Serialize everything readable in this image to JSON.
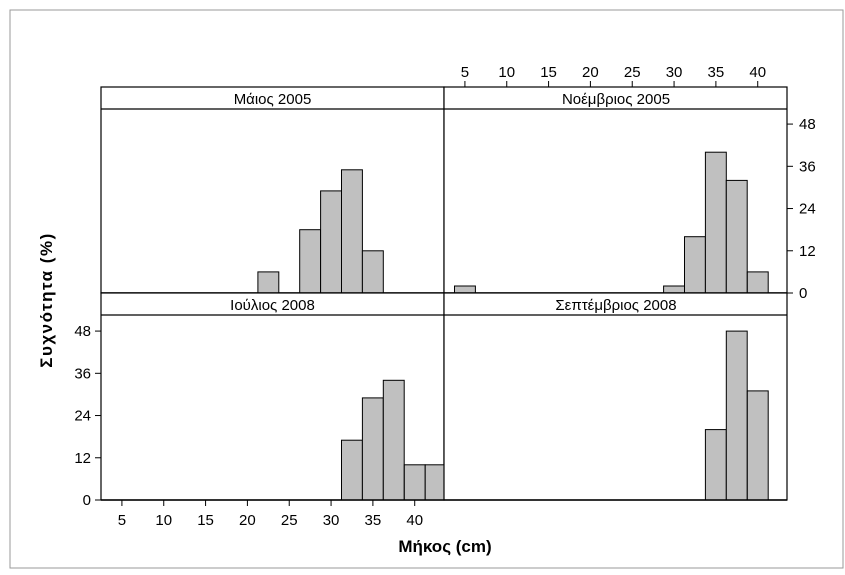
{
  "chart_data": {
    "type": "bar",
    "layout": "2x2 faceted histogram",
    "ylabel": "Συχνότητα (%)",
    "xlabel": "Μήκος (cm)",
    "x_ticks": [
      5,
      10,
      15,
      20,
      25,
      30,
      35,
      40
    ],
    "y_ticks": [
      0,
      12,
      24,
      36,
      48
    ],
    "xlim": [
      2.5,
      43.5
    ],
    "ylim": [
      0,
      52
    ],
    "bin_width": 2.5,
    "colors": {
      "bar_fill": "#c0c0c0",
      "bar_stroke": "#000000"
    },
    "panels": [
      {
        "title": "Μάιος 2005",
        "bins": [
          {
            "x0": 21.25,
            "value": 6
          },
          {
            "x0": 26.25,
            "value": 18
          },
          {
            "x0": 28.75,
            "value": 29
          },
          {
            "x0": 31.25,
            "value": 35
          },
          {
            "x0": 33.75,
            "value": 12
          }
        ]
      },
      {
        "title": "Νοέμβριος 2005",
        "bins": [
          {
            "x0": 3.75,
            "value": 2
          },
          {
            "x0": 28.75,
            "value": 2
          },
          {
            "x0": 31.25,
            "value": 16
          },
          {
            "x0": 33.75,
            "value": 40
          },
          {
            "x0": 36.25,
            "value": 32
          },
          {
            "x0": 38.75,
            "value": 6
          }
        ]
      },
      {
        "title": "Ιούλιος 2008",
        "bins": [
          {
            "x0": 31.25,
            "value": 17
          },
          {
            "x0": 33.75,
            "value": 29
          },
          {
            "x0": 36.25,
            "value": 34
          },
          {
            "x0": 38.75,
            "value": 10
          },
          {
            "x0": 41.25,
            "value": 10
          }
        ]
      },
      {
        "title": "Σεπτέμβριος 2008",
        "bins": [
          {
            "x0": 33.75,
            "value": 20
          },
          {
            "x0": 36.25,
            "value": 48
          },
          {
            "x0": 38.75,
            "value": 31
          }
        ]
      }
    ]
  }
}
